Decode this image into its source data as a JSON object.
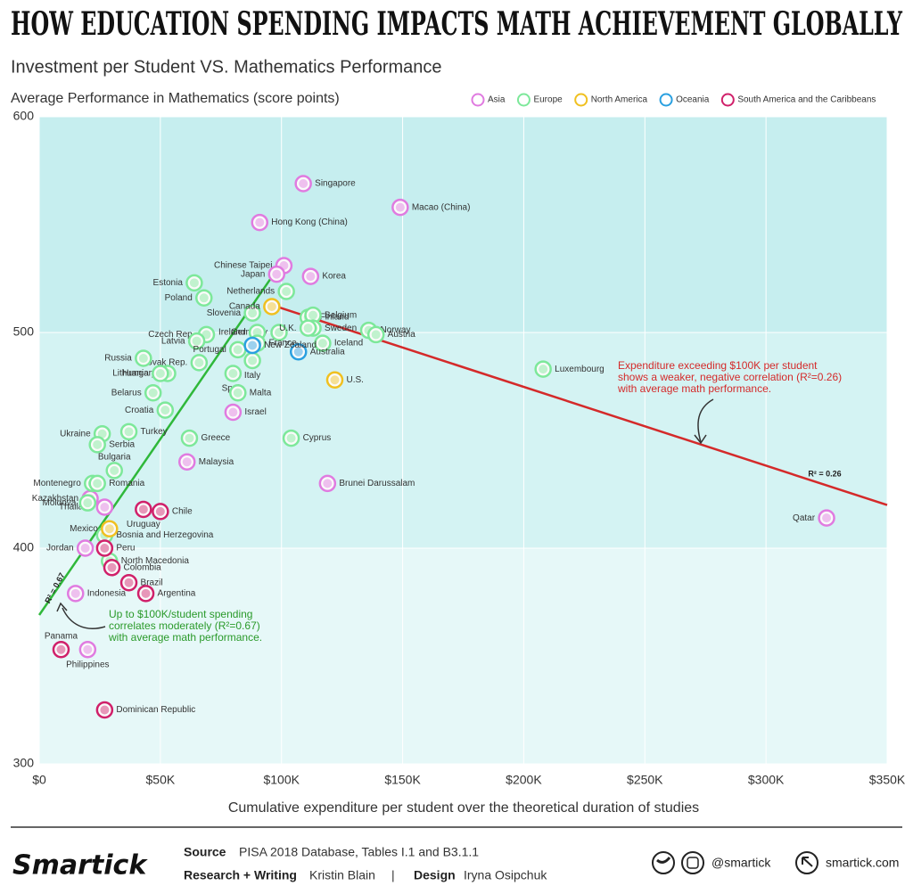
{
  "chart_data": {
    "type": "scatter",
    "title": "HOW EDUCATION SPENDING IMPACTS MATH ACHIEVEMENT GLOBALLY",
    "subtitle": "Investment per Student VS. Mathematics Performance",
    "y_label": "Average Performance in Mathematics (score points)",
    "x_label": "Cumulative expenditure per student over the theoretical duration of studies",
    "xlim": [
      0,
      350000
    ],
    "ylim": [
      300,
      600
    ],
    "xticks": [
      {
        "value": 0,
        "label": "$0"
      },
      {
        "value": 50000,
        "label": "$50K"
      },
      {
        "value": 100000,
        "label": "$100K"
      },
      {
        "value": 150000,
        "label": "$150K"
      },
      {
        "value": 200000,
        "label": "$200K"
      },
      {
        "value": 250000,
        "label": "$250K"
      },
      {
        "value": 300000,
        "label": "$300K"
      },
      {
        "value": 350000,
        "label": "$350K"
      }
    ],
    "yticks": [
      300,
      400,
      500,
      600
    ],
    "grid": true,
    "legend": "top-right",
    "series": [
      {
        "name": "Asia",
        "color": "#e07be0",
        "labels": [
          "Singapore",
          "Macao (China)",
          "Hong Kong (China)",
          "Chinese Taipei",
          "Japan",
          "Korea",
          "Israel",
          "Malaysia",
          "Brunei Darussalam",
          "Kazakhstan",
          "Thailand",
          "Indonesia",
          "Philippines",
          "Jordan",
          "Qatar"
        ],
        "x": [
          109000,
          149000,
          91000,
          101000,
          98000,
          112000,
          80000,
          61000,
          119000,
          21000,
          27000,
          15000,
          20000,
          19000,
          325000
        ],
        "values": [
          569,
          558,
          551,
          531,
          527,
          526,
          463,
          440,
          430,
          423,
          419,
          379,
          353,
          400,
          414
        ]
      },
      {
        "name": "Europe",
        "color": "#7de89a",
        "labels": [
          "Estonia",
          "Netherlands",
          "Poland",
          "Finland",
          "Belgium",
          "Slovenia",
          "Sweden",
          "Germany",
          "Ireland",
          "Norway",
          "Austria",
          "Czech Rep.",
          "Latvia",
          "U.K.",
          "Iceland",
          "Portugal",
          "Slovak Rep.",
          "France",
          "Italy",
          "Russia",
          "Hungary",
          "Lithuania",
          "Spain",
          "Luxembourg",
          "Belarus",
          "Malta",
          "Croatia",
          "Ukraine",
          "Turkey",
          "Serbia",
          "Greece",
          "Cyprus",
          "Bulgaria",
          "Montenegro",
          "Romania",
          "Moldova",
          "Bosnia and Herzegovina",
          "North Macedonia"
        ],
        "x": [
          64000,
          102000,
          68000,
          111000,
          113000,
          88000,
          113000,
          99000,
          90000,
          136000,
          139000,
          69000,
          65000,
          111000,
          117000,
          82000,
          66000,
          90000,
          88000,
          43000,
          53000,
          50000,
          80000,
          208000,
          47000,
          82000,
          52000,
          26000,
          37000,
          24000,
          62000,
          104000,
          31000,
          22000,
          24000,
          20000,
          27000,
          29000
        ],
        "values": [
          523,
          519,
          516,
          507,
          508,
          509,
          502,
          500,
          500,
          501,
          499,
          499,
          496,
          502,
          495,
          492,
          486,
          495,
          487,
          488,
          481,
          481,
          481,
          483,
          472,
          472,
          464,
          453,
          454,
          448,
          451,
          451,
          436,
          430,
          430,
          421,
          406,
          394
        ]
      },
      {
        "name": "North America",
        "color": "#f0c020",
        "labels": [
          "Canada",
          "U.S.",
          "Mexico"
        ],
        "x": [
          96000,
          122000,
          29000
        ],
        "values": [
          512,
          478,
          409
        ]
      },
      {
        "name": "Oceania",
        "color": "#2aa0e0",
        "labels": [
          "Australia",
          "New Zealand"
        ],
        "x": [
          107000,
          88000
        ],
        "values": [
          491,
          494
        ]
      },
      {
        "name": "South America and the Caribbeans",
        "color": "#d0206a",
        "labels": [
          "Uruguay",
          "Chile",
          "Peru",
          "Colombia",
          "Brazil",
          "Argentina",
          "Panama",
          "Dominican Republic"
        ],
        "x": [
          43000,
          50000,
          27000,
          30000,
          37000,
          44000,
          9000,
          27000
        ],
        "values": [
          418,
          417,
          400,
          391,
          384,
          379,
          353,
          325
        ]
      }
    ],
    "trendlines": [
      {
        "label": "R² = 0.67",
        "color": "#2fb83a",
        "x": [
          0,
          98000
        ],
        "y": [
          369,
          529
        ]
      },
      {
        "label": "R² = 0.26",
        "color": "#d42a2a",
        "x": [
          98000,
          350000
        ],
        "y": [
          512,
          420
        ]
      }
    ],
    "annotations": [
      {
        "color": "#2a9a2a",
        "lines": [
          "Up to $100K/student spending",
          "correlates moderately (R²=0.67)",
          "with average math performance."
        ]
      },
      {
        "color": "#d42a2a",
        "lines": [
          "Expenditure exceeding $100K per student",
          "shows a weaker, negative correlation (R²=0.26)",
          "with average math performance."
        ]
      }
    ]
  },
  "footer": {
    "logo": "Smartick",
    "source_key": "Source",
    "source": "PISA 2018 Database, Tables I.1 and B3.1.1",
    "research_key": "Research + Writing",
    "research": "Kristin Blain",
    "separator": "|",
    "design_key": "Design",
    "design": "Iryna Osipchuk",
    "social": "@smartick",
    "site": "smartick.com"
  }
}
